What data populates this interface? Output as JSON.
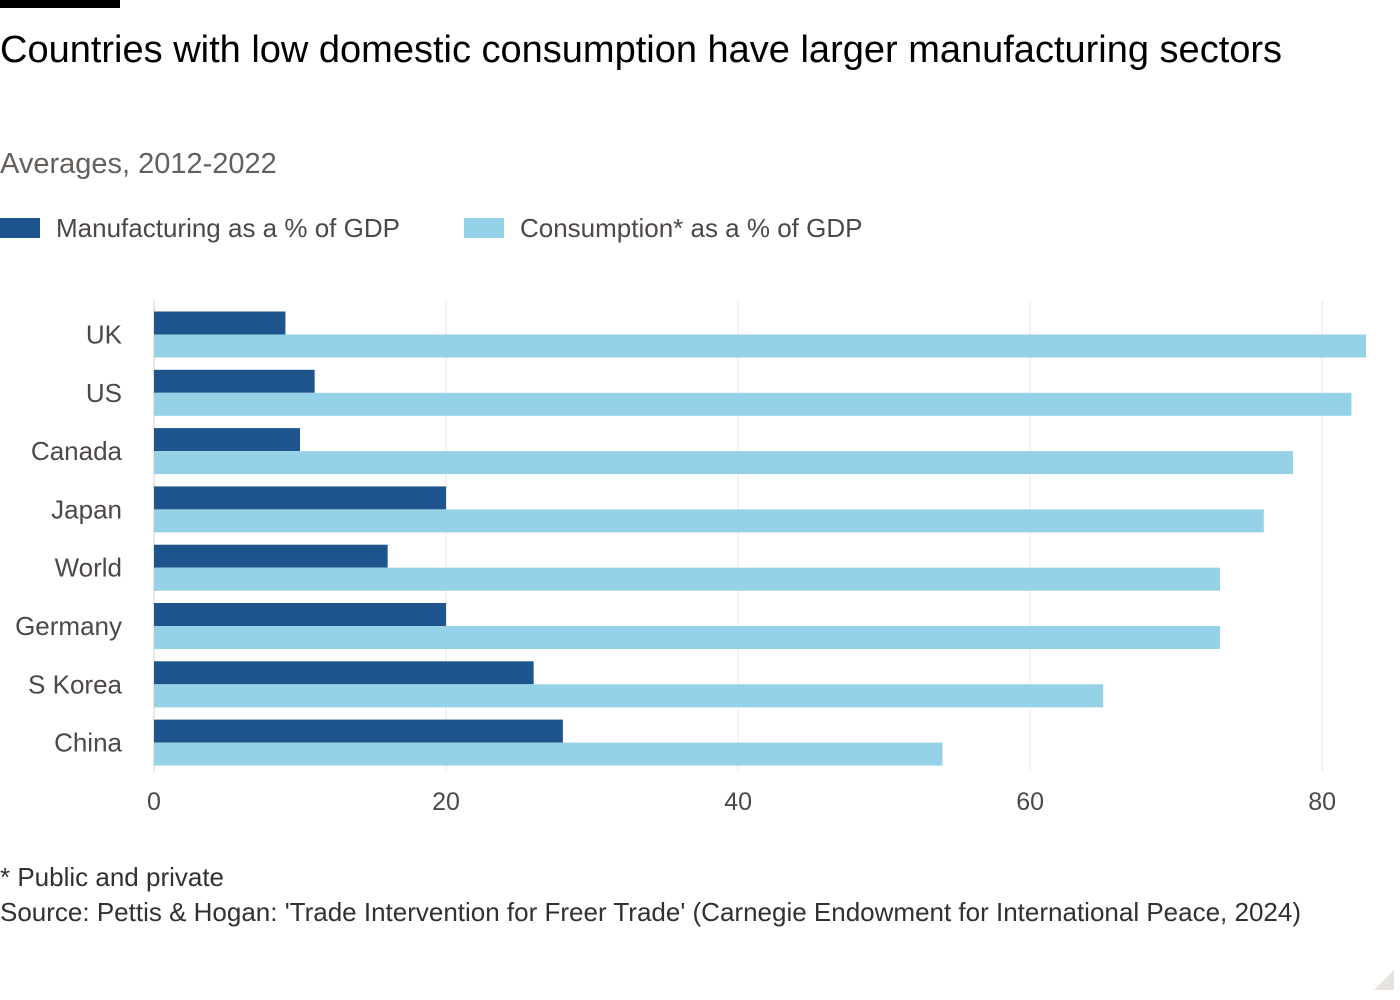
{
  "header": {
    "title": "Countries with low domestic consumption have larger manufacturing sectors",
    "subtitle": "Averages, 2012-2022"
  },
  "legend": [
    {
      "label": "Manufacturing as a % of GDP",
      "color": "#1e558c"
    },
    {
      "label": "Consumption* as a % of GDP",
      "color": "#95d1e7"
    }
  ],
  "footer": {
    "note": "* Public and private",
    "source": "Source: Pettis & Hogan: 'Trade Intervention for Freer Trade' (Carnegie Endowment for International Peace, 2024)"
  },
  "chart_data": {
    "type": "bar",
    "orientation": "horizontal",
    "categories": [
      "UK",
      "US",
      "Canada",
      "Japan",
      "World",
      "Germany",
      "S Korea",
      "China"
    ],
    "series": [
      {
        "name": "Manufacturing as a % of GDP",
        "color": "#1e558c",
        "values": [
          9,
          11,
          10,
          20,
          16,
          20,
          26,
          28
        ]
      },
      {
        "name": "Consumption* as a % of GDP",
        "color": "#95d1e7",
        "values": [
          83,
          82,
          78,
          76,
          73,
          73,
          65,
          54
        ]
      }
    ],
    "xlim": [
      0,
      83
    ],
    "xticks": [
      0,
      20,
      40,
      60,
      80
    ],
    "grid": "vertical",
    "legend_position": "top-left"
  }
}
